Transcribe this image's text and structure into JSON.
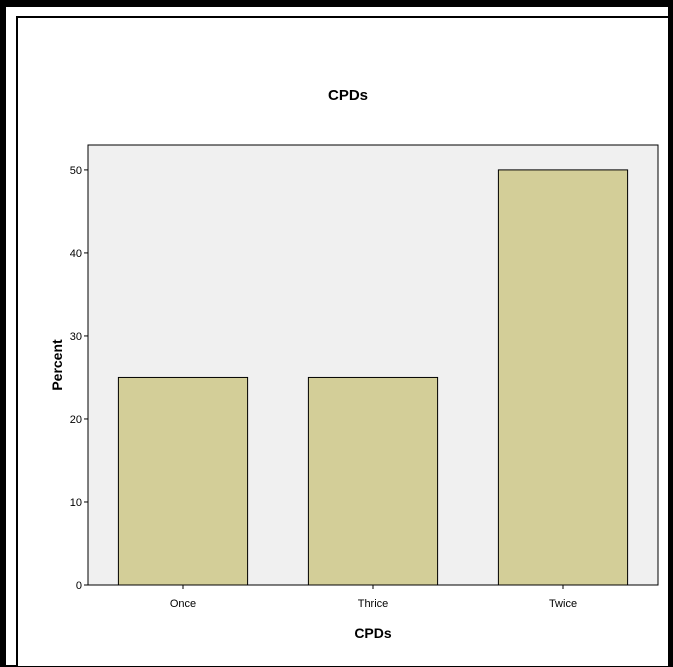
{
  "chart_data": {
    "type": "bar",
    "title": "CPDs",
    "xlabel": "CPDs",
    "ylabel": "Percent",
    "categories": [
      "Once",
      "Thrice",
      "Twice"
    ],
    "values": [
      25,
      25,
      50
    ],
    "ylim": [
      0,
      53
    ],
    "yticks": [
      "0",
      "10",
      "20",
      "30",
      "40",
      "50"
    ],
    "grid": false,
    "colors": {
      "bar_fill": "#d3ce98",
      "bar_stroke": "#000000",
      "plot_background": "#f0f0f0"
    }
  }
}
